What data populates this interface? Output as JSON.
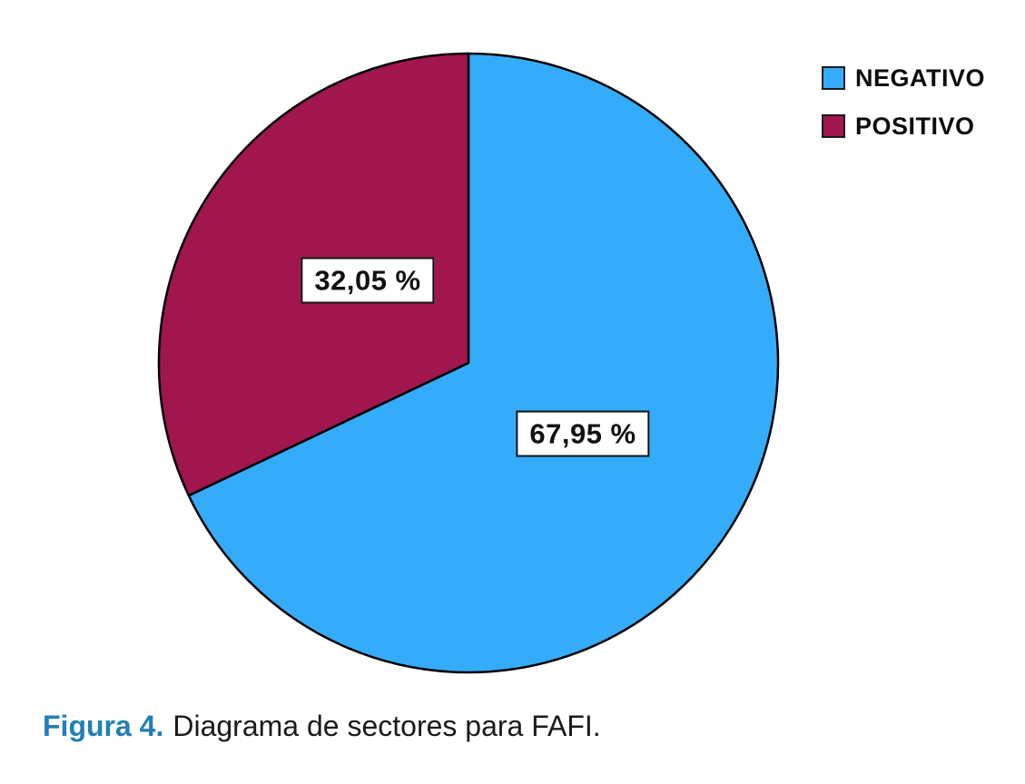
{
  "figure": {
    "caption_prefix": "Figura 4.",
    "caption_text": "Diagrama de sectores para FAFI.",
    "caption_accent_color": "#2380B5"
  },
  "chart_data": {
    "type": "pie",
    "title": "",
    "slices": [
      {
        "label": "NEGATIVO",
        "value": 67.95,
        "display": "67,95 %",
        "color": "#35ACFA"
      },
      {
        "label": "POSITIVO",
        "value": 32.05,
        "display": "32,05 %",
        "color": "#A1164F"
      }
    ],
    "start_angle_deg": 0,
    "direction": "clockwise",
    "outline_color": "#000000",
    "legend_position": "top-right",
    "value_label_style": "boxed-white",
    "values_unit": "%"
  }
}
